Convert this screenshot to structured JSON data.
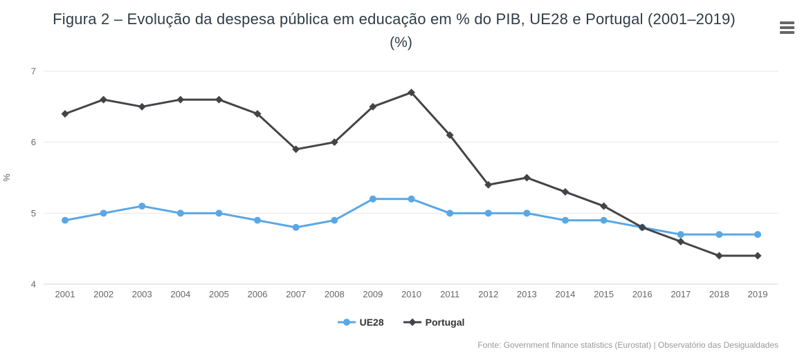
{
  "header": {
    "title": "Figura 2 – Evolução da despesa pública em educação em % do PIB, UE28 e Portugal (2001–2019)",
    "subtitle": "(%)"
  },
  "icons": {
    "context_menu": "hamburger-icon"
  },
  "chart_data": {
    "type": "line",
    "title": "Figura 2 – Evolução da despesa pública em educação em % do PIB, UE28 e Portugal (2001–2019)",
    "subtitle": "(%)",
    "categories": [
      "2001",
      "2002",
      "2003",
      "2004",
      "2005",
      "2006",
      "2007",
      "2008",
      "2009",
      "2010",
      "2011",
      "2012",
      "2013",
      "2014",
      "2015",
      "2016",
      "2017",
      "2018",
      "2019"
    ],
    "series": [
      {
        "name": "UE28",
        "marker": "circle",
        "color": "#5aa7e5",
        "values": [
          4.9,
          5.0,
          5.1,
          5.0,
          5.0,
          4.9,
          4.8,
          4.9,
          5.2,
          5.2,
          5.0,
          5.0,
          5.0,
          4.9,
          4.9,
          4.8,
          4.7,
          4.7,
          4.7
        ]
      },
      {
        "name": "Portugal",
        "marker": "diamond",
        "color": "#434348",
        "values": [
          6.4,
          6.6,
          6.5,
          6.6,
          6.6,
          6.4,
          5.9,
          6.0,
          6.5,
          6.7,
          6.1,
          5.4,
          5.5,
          5.3,
          5.1,
          4.8,
          4.6,
          4.4,
          4.4
        ]
      }
    ],
    "xlabel": "",
    "ylabel": "%",
    "ylim": [
      4,
      7
    ],
    "yticks": [
      4,
      5,
      6,
      7
    ],
    "grid": true,
    "legend_position": "bottom"
  },
  "footer": {
    "credits": "Fonte: Government finance statistics (Eurostat) | Observatório das Desigualdades"
  },
  "colors": {
    "title": "#2e3d46",
    "grid_line": "#e6e6e6",
    "axis_line": "#ccd6eb",
    "tick_label": "#666666",
    "axis_title": "#666666",
    "legend_label": "#333333",
    "credits_text": "#999999",
    "menu_icon": "#666666"
  }
}
